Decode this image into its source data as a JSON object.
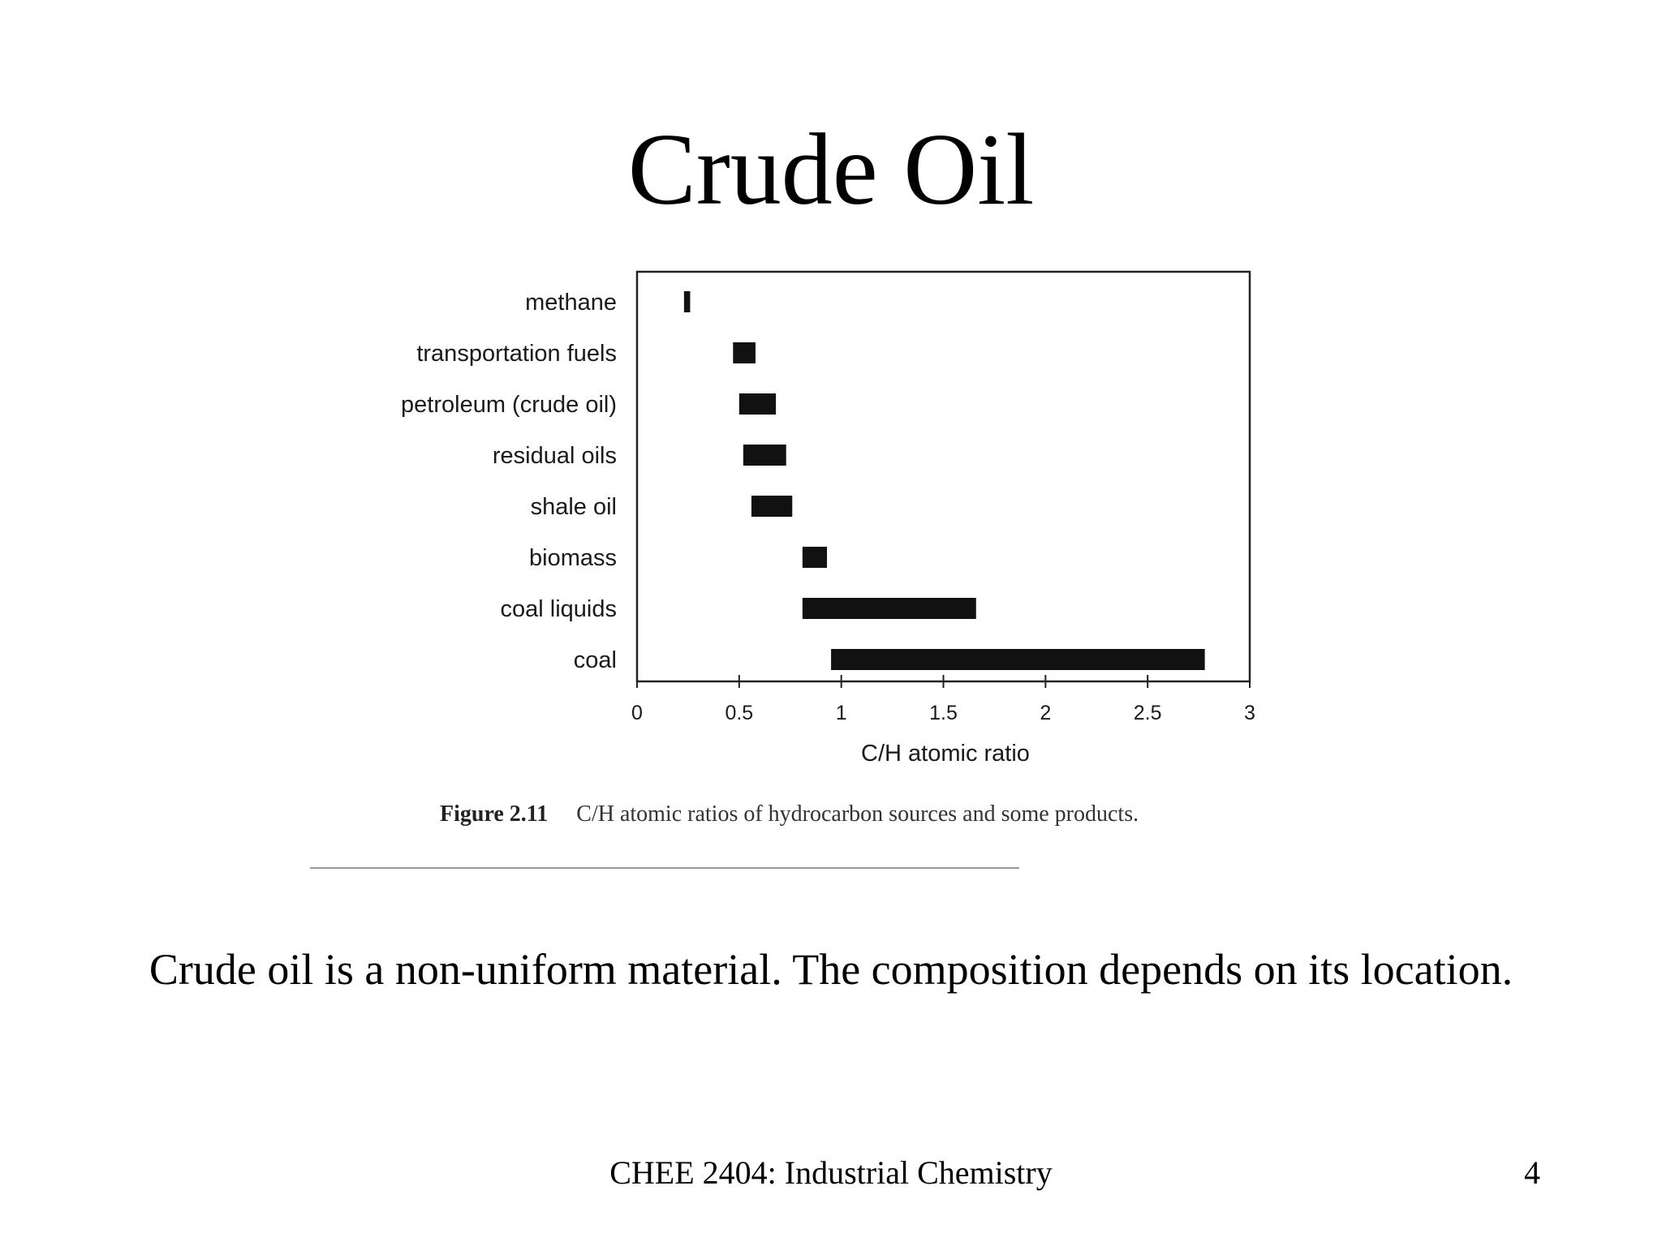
{
  "slide": {
    "title": "Crude Oil",
    "body_text": "Crude oil is a non-uniform material. The composition depends on its location.",
    "footer": "CHEE 2404: Industrial Chemistry",
    "page_number": "4"
  },
  "figure": {
    "label": "Figure 2.11",
    "caption": "C/H atomic ratios of hydrocarbon sources and some products."
  },
  "colors": {
    "bar": "#111111",
    "axis": "#222222",
    "text": "#1a1a1a"
  },
  "chart_data": {
    "type": "bar",
    "orientation": "horizontal-range",
    "xlabel": "C/H atomic ratio",
    "xlim": [
      0,
      3
    ],
    "xticks": [
      "0",
      "0.5",
      "1",
      "1.5",
      "2",
      "2.5",
      "3"
    ],
    "grid": false,
    "categories": [
      "methane",
      "transportation fuels",
      "petroleum (crude oil)",
      "residual oils",
      "shale oil",
      "biomass",
      "coal liquids",
      "coal"
    ],
    "ranges": [
      [
        0.23,
        0.26
      ],
      [
        0.47,
        0.58
      ],
      [
        0.5,
        0.68
      ],
      [
        0.52,
        0.73
      ],
      [
        0.56,
        0.76
      ],
      [
        0.81,
        0.93
      ],
      [
        0.81,
        1.66
      ],
      [
        0.95,
        2.78
      ]
    ]
  }
}
